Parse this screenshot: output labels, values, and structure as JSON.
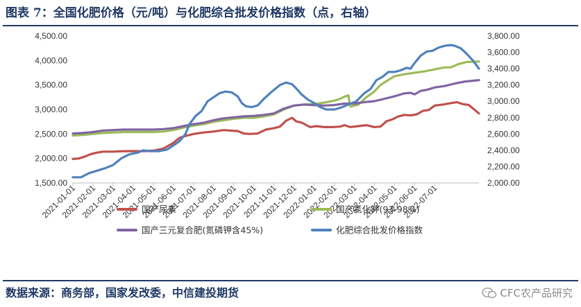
{
  "header": {
    "title": "图表 7：全国化肥价格（元/吨）与化肥综合批发价格指数（点，右轴）"
  },
  "footer": {
    "source": "数据来源：商务部，国家发改委，中信建投期货",
    "watermark": "CFC农产品研究"
  },
  "chart_data": {
    "type": "line",
    "title": "图表 7：全国化肥价格（元/吨）与化肥综合批发价格指数（点，右轴）",
    "xlabel": "",
    "ylabel": "",
    "ylim": [
      1500,
      4500
    ],
    "y2lim": [
      2000,
      3800
    ],
    "grid": false,
    "legend_position": "bottom",
    "colors": {
      "urea": "#c0504d",
      "potash": "#9bbb59",
      "compound": "#8064a2",
      "index": "#4f81bd"
    },
    "x_tick_labels": [
      "2021-01-01",
      "2021-02-01",
      "2021-03-01",
      "2021-04-01",
      "2021-05-01",
      "2021-06-01",
      "2021-07-01",
      "2021-08-01",
      "2021-09-01",
      "2021-10-01",
      "2021-11-01",
      "2021-12-01",
      "2022-01-01",
      "2022-02-01",
      "2022-03-01",
      "2022-04-01",
      "2022-05-01",
      "2022-06-01",
      "2022-07-01"
    ],
    "y_tick_labels": [
      "1,500.00",
      "2,000.00",
      "2,500.00",
      "3,000.00",
      "3,500.00",
      "4,000.00",
      "4,500.00"
    ],
    "y2_tick_labels": [
      "2,000.00",
      "2,200.00",
      "2,400.00",
      "2,600.00",
      "2,800.00",
      "3,000.00",
      "3,200.00",
      "3,400.00",
      "3,600.00",
      "3,800.00"
    ],
    "y_ticks": [
      1500,
      2000,
      2500,
      3000,
      3500,
      4000,
      4500
    ],
    "y2_ticks": [
      2000,
      2200,
      2400,
      2600,
      2800,
      3000,
      3200,
      3400,
      3600,
      3800
    ],
    "series": [
      {
        "key": "urea",
        "name": "国产尿素",
        "axis": "left",
        "points": [
          [
            0,
            1990
          ],
          [
            0.3,
            2000
          ],
          [
            0.6,
            2040
          ],
          [
            0.9,
            2090
          ],
          [
            1.2,
            2120
          ],
          [
            1.5,
            2140
          ],
          [
            2,
            2140
          ],
          [
            2.5,
            2150
          ],
          [
            3,
            2150
          ],
          [
            3.5,
            2150
          ],
          [
            4,
            2160
          ],
          [
            4.5,
            2200
          ],
          [
            5,
            2320
          ],
          [
            5.3,
            2420
          ],
          [
            5.6,
            2460
          ],
          [
            6,
            2500
          ],
          [
            6.5,
            2530
          ],
          [
            7,
            2550
          ],
          [
            7.5,
            2580
          ],
          [
            7.8,
            2570
          ],
          [
            8.2,
            2560
          ],
          [
            8.5,
            2510
          ],
          [
            8.8,
            2500
          ],
          [
            9.2,
            2510
          ],
          [
            9.6,
            2590
          ],
          [
            10,
            2620
          ],
          [
            10.3,
            2650
          ],
          [
            10.6,
            2770
          ],
          [
            10.9,
            2830
          ],
          [
            11.1,
            2760
          ],
          [
            11.4,
            2730
          ],
          [
            11.8,
            2640
          ],
          [
            12.1,
            2660
          ],
          [
            12.5,
            2640
          ],
          [
            12.9,
            2640
          ],
          [
            13.3,
            2650
          ],
          [
            13.5,
            2680
          ],
          [
            13.8,
            2640
          ],
          [
            14.2,
            2660
          ],
          [
            14.6,
            2680
          ],
          [
            15,
            2640
          ],
          [
            15.3,
            2650
          ],
          [
            15.6,
            2760
          ],
          [
            15.9,
            2800
          ],
          [
            16.2,
            2860
          ],
          [
            16.5,
            2890
          ],
          [
            16.8,
            2880
          ],
          [
            17.1,
            2900
          ],
          [
            17.4,
            2970
          ],
          [
            17.7,
            2990
          ],
          [
            18,
            3080
          ],
          [
            18.4,
            3100
          ],
          [
            18.8,
            3130
          ],
          [
            19.1,
            3150
          ],
          [
            19.4,
            3110
          ],
          [
            19.7,
            3090
          ],
          [
            20.2,
            2920
          ]
        ]
      },
      {
        "key": "potash",
        "name": "国产氯化钾(93-98%)",
        "axis": "left",
        "points": [
          [
            0,
            2470
          ],
          [
            0.5,
            2480
          ],
          [
            1,
            2500
          ],
          [
            1.5,
            2520
          ],
          [
            2,
            2530
          ],
          [
            2.5,
            2540
          ],
          [
            3,
            2540
          ],
          [
            3.5,
            2540
          ],
          [
            4,
            2540
          ],
          [
            4.5,
            2550
          ],
          [
            5,
            2580
          ],
          [
            5.5,
            2630
          ],
          [
            6,
            2670
          ],
          [
            6.5,
            2700
          ],
          [
            7,
            2750
          ],
          [
            7.5,
            2780
          ],
          [
            8,
            2810
          ],
          [
            8.5,
            2830
          ],
          [
            9,
            2830
          ],
          [
            9.5,
            2860
          ],
          [
            10,
            2900
          ],
          [
            10.5,
            3000
          ],
          [
            11,
            3080
          ],
          [
            11.5,
            3100
          ],
          [
            12,
            3110
          ],
          [
            12.5,
            3140
          ],
          [
            13,
            3180
          ],
          [
            13.3,
            3220
          ],
          [
            13.5,
            3260
          ],
          [
            13.7,
            3290
          ],
          [
            13.8,
            3060
          ],
          [
            14.2,
            3100
          ],
          [
            14.6,
            3250
          ],
          [
            15,
            3370
          ],
          [
            15.3,
            3500
          ],
          [
            15.6,
            3580
          ],
          [
            16,
            3680
          ],
          [
            16.5,
            3720
          ],
          [
            17,
            3750
          ],
          [
            17.5,
            3780
          ],
          [
            18,
            3820
          ],
          [
            18.5,
            3860
          ],
          [
            18.8,
            3860
          ],
          [
            19.2,
            3930
          ],
          [
            19.6,
            3970
          ],
          [
            20.2,
            3980
          ]
        ]
      },
      {
        "key": "compound",
        "name": "国产三元复合肥(氮磷钾含45%)",
        "axis": "left",
        "points": [
          [
            0,
            2510
          ],
          [
            0.5,
            2520
          ],
          [
            1,
            2540
          ],
          [
            1.5,
            2570
          ],
          [
            2,
            2580
          ],
          [
            2.5,
            2590
          ],
          [
            3,
            2590
          ],
          [
            3.5,
            2590
          ],
          [
            4,
            2590
          ],
          [
            4.5,
            2600
          ],
          [
            5,
            2620
          ],
          [
            5.5,
            2660
          ],
          [
            6,
            2700
          ],
          [
            6.5,
            2730
          ],
          [
            7,
            2780
          ],
          [
            7.5,
            2820
          ],
          [
            8,
            2840
          ],
          [
            8.5,
            2860
          ],
          [
            9,
            2870
          ],
          [
            9.5,
            2890
          ],
          [
            10,
            2920
          ],
          [
            10.5,
            3020
          ],
          [
            11,
            3080
          ],
          [
            11.5,
            3100
          ],
          [
            12,
            3090
          ],
          [
            12.5,
            3080
          ],
          [
            13,
            3090
          ],
          [
            13.5,
            3120
          ],
          [
            14,
            3120
          ],
          [
            14.5,
            3150
          ],
          [
            15,
            3170
          ],
          [
            15.5,
            3220
          ],
          [
            16,
            3270
          ],
          [
            16.5,
            3330
          ],
          [
            16.8,
            3340
          ],
          [
            17,
            3310
          ],
          [
            17.3,
            3380
          ],
          [
            17.6,
            3400
          ],
          [
            18,
            3450
          ],
          [
            18.5,
            3480
          ],
          [
            19,
            3530
          ],
          [
            19.5,
            3570
          ],
          [
            20.2,
            3600
          ]
        ]
      },
      {
        "key": "index",
        "name": "化肥综合批发价格指数",
        "axis": "right",
        "points": [
          [
            0,
            2070
          ],
          [
            0.4,
            2070
          ],
          [
            0.8,
            2120
          ],
          [
            1.2,
            2150
          ],
          [
            1.6,
            2180
          ],
          [
            2,
            2220
          ],
          [
            2.4,
            2300
          ],
          [
            2.8,
            2350
          ],
          [
            3.2,
            2370
          ],
          [
            3.5,
            2400
          ],
          [
            3.8,
            2390
          ],
          [
            4.3,
            2390
          ],
          [
            4.7,
            2410
          ],
          [
            5,
            2460
          ],
          [
            5.3,
            2510
          ],
          [
            5.6,
            2600
          ],
          [
            5.8,
            2720
          ],
          [
            6.1,
            2820
          ],
          [
            6.4,
            2880
          ],
          [
            6.7,
            3000
          ],
          [
            7,
            3050
          ],
          [
            7.3,
            3100
          ],
          [
            7.6,
            3120
          ],
          [
            7.9,
            3110
          ],
          [
            8.2,
            3060
          ],
          [
            8.4,
            2980
          ],
          [
            8.6,
            2940
          ],
          [
            8.9,
            2930
          ],
          [
            9.2,
            2950
          ],
          [
            9.5,
            3030
          ],
          [
            9.9,
            3120
          ],
          [
            10.3,
            3200
          ],
          [
            10.6,
            3230
          ],
          [
            10.9,
            3210
          ],
          [
            11.1,
            3160
          ],
          [
            11.4,
            3080
          ],
          [
            11.7,
            3020
          ],
          [
            12,
            2980
          ],
          [
            12.3,
            2930
          ],
          [
            12.6,
            2900
          ],
          [
            13,
            2900
          ],
          [
            13.3,
            2920
          ],
          [
            13.7,
            2960
          ],
          [
            14.1,
            3000
          ],
          [
            14.5,
            3100
          ],
          [
            14.8,
            3150
          ],
          [
            15.1,
            3260
          ],
          [
            15.4,
            3300
          ],
          [
            15.7,
            3360
          ],
          [
            16,
            3360
          ],
          [
            16.3,
            3380
          ],
          [
            16.6,
            3410
          ],
          [
            16.8,
            3400
          ],
          [
            17,
            3470
          ],
          [
            17.3,
            3560
          ],
          [
            17.6,
            3610
          ],
          [
            17.9,
            3620
          ],
          [
            18.2,
            3660
          ],
          [
            18.5,
            3680
          ],
          [
            18.8,
            3690
          ],
          [
            19,
            3680
          ],
          [
            19.3,
            3650
          ],
          [
            19.6,
            3580
          ],
          [
            19.9,
            3500
          ],
          [
            20.2,
            3400
          ]
        ]
      }
    ]
  }
}
